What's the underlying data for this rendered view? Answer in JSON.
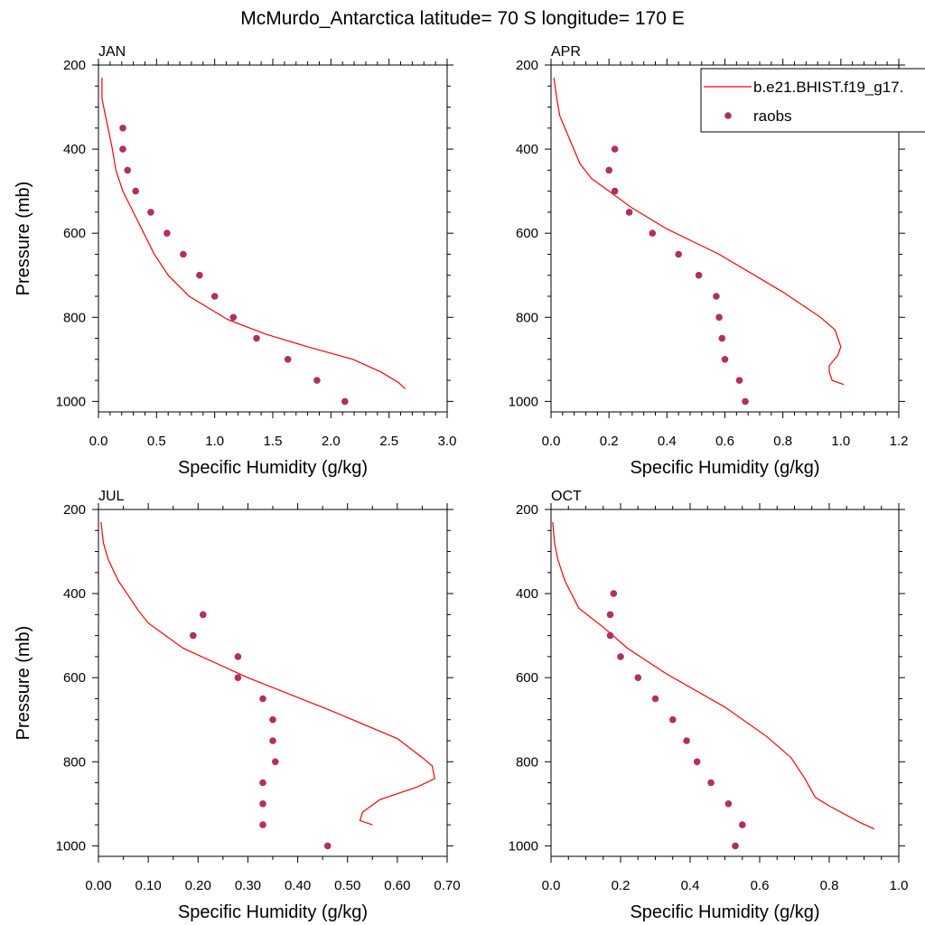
{
  "title": "McMurdo_Antarctica  latitude= 70 S longitude= 170 E",
  "legend": {
    "model_label": "b.e21.BHIST.f19_g17.",
    "obs_label": "raobs"
  },
  "colors": {
    "model_line": "#ff0000",
    "obs_marker": "#b03060",
    "axis": "#000000"
  },
  "chart_data": [
    {
      "type": "scatter",
      "panel": "JAN",
      "xlabel": "Specific Humidity (g/kg)",
      "ylabel": "Pressure (mb)",
      "xlim": [
        0.0,
        3.0
      ],
      "ylim": [
        1025,
        200
      ],
      "y_reversed": true,
      "xticks": [
        "0.0",
        "0.5",
        "1.0",
        "1.5",
        "2.0",
        "2.5",
        "3.0"
      ],
      "yticks": [
        "200",
        "400",
        "600",
        "800",
        "1000"
      ],
      "series": [
        {
          "name": "b.e21.BHIST.f19_g17.",
          "type": "line",
          "points": [
            [
              0.88,
              970
            ],
            [
              0.86,
              955
            ],
            [
              0.81,
              930
            ],
            [
              0.73,
              900
            ],
            [
              0.6,
              870
            ],
            [
              0.48,
              840
            ],
            [
              0.37,
              805
            ],
            [
              0.26,
              750
            ],
            [
              0.2,
              700
            ],
            [
              0.16,
              650
            ],
            [
              0.13,
              600
            ],
            [
              0.1,
              550
            ],
            [
              0.07,
              500
            ],
            [
              0.05,
              450
            ],
            [
              0.04,
              400
            ],
            [
              0.03,
              360
            ],
            [
              0.02,
              320
            ],
            [
              0.01,
              280
            ],
            [
              0.01,
              230
            ]
          ],
          "points_note": "x values scaled: multiply by 3.0"
        },
        {
          "name": "raobs",
          "type": "scatter",
          "points": [
            [
              2.12,
              1000
            ],
            [
              1.88,
              950
            ],
            [
              1.63,
              900
            ],
            [
              1.36,
              850
            ],
            [
              1.16,
              800
            ],
            [
              1.0,
              750
            ],
            [
              0.87,
              700
            ],
            [
              0.73,
              650
            ],
            [
              0.59,
              600
            ],
            [
              0.45,
              550
            ],
            [
              0.32,
              500
            ],
            [
              0.25,
              450
            ],
            [
              0.21,
              400
            ],
            [
              0.21,
              350
            ]
          ]
        }
      ]
    },
    {
      "type": "scatter",
      "panel": "APR",
      "xlabel": "Specific Humidity (g/kg)",
      "ylabel": "",
      "xlim": [
        0.0,
        1.2
      ],
      "ylim": [
        1025,
        200
      ],
      "y_reversed": true,
      "xticks": [
        "0.0",
        "0.2",
        "0.4",
        "0.6",
        "0.8",
        "1.0",
        "1.2"
      ],
      "yticks": [
        "200",
        "400",
        "600",
        "800",
        "1000"
      ],
      "series": [
        {
          "name": "b.e21.BHIST.f19_g17.",
          "type": "line",
          "points": [
            [
              1.01,
              960
            ],
            [
              0.97,
              950
            ],
            [
              0.96,
              930
            ],
            [
              0.96,
              915
            ],
            [
              0.99,
              890
            ],
            [
              1.0,
              870
            ],
            [
              0.98,
              830
            ],
            [
              0.93,
              800
            ],
            [
              0.8,
              740
            ],
            [
              0.58,
              650
            ],
            [
              0.4,
              590
            ],
            [
              0.28,
              540
            ],
            [
              0.2,
              500
            ],
            [
              0.14,
              470
            ],
            [
              0.1,
              435
            ],
            [
              0.06,
              370
            ],
            [
              0.03,
              320
            ],
            [
              0.02,
              280
            ],
            [
              0.01,
              230
            ]
          ]
        },
        {
          "name": "raobs",
          "type": "scatter",
          "points": [
            [
              0.67,
              1000
            ],
            [
              0.65,
              950
            ],
            [
              0.6,
              900
            ],
            [
              0.59,
              850
            ],
            [
              0.58,
              800
            ],
            [
              0.57,
              750
            ],
            [
              0.51,
              700
            ],
            [
              0.44,
              650
            ],
            [
              0.35,
              600
            ],
            [
              0.27,
              550
            ],
            [
              0.22,
              500
            ],
            [
              0.2,
              450
            ],
            [
              0.22,
              400
            ]
          ]
        }
      ]
    },
    {
      "type": "scatter",
      "panel": "JUL",
      "xlabel": "Specific Humidity (g/kg)",
      "ylabel": "Pressure (mb)",
      "xlim": [
        0.0,
        0.7
      ],
      "ylim": [
        1025,
        200
      ],
      "y_reversed": true,
      "xticks": [
        "0.00",
        "0.10",
        "0.20",
        "0.30",
        "0.40",
        "0.50",
        "0.60",
        "0.70"
      ],
      "yticks": [
        "200",
        "400",
        "600",
        "800",
        "1000"
      ],
      "series": [
        {
          "name": "b.e21.BHIST.f19_g17.",
          "type": "line",
          "points": [
            [
              0.55,
              950
            ],
            [
              0.525,
              940
            ],
            [
              0.53,
              920
            ],
            [
              0.565,
              890
            ],
            [
              0.64,
              860
            ],
            [
              0.675,
              840
            ],
            [
              0.67,
              810
            ],
            [
              0.65,
              790
            ],
            [
              0.6,
              745
            ],
            [
              0.47,
              680
            ],
            [
              0.3,
              600
            ],
            [
              0.17,
              530
            ],
            [
              0.1,
              470
            ],
            [
              0.08,
              440
            ],
            [
              0.04,
              370
            ],
            [
              0.02,
              320
            ],
            [
              0.01,
              280
            ],
            [
              0.005,
              230
            ]
          ]
        },
        {
          "name": "raobs",
          "type": "scatter",
          "points": [
            [
              0.46,
              1000
            ],
            [
              0.33,
              950
            ],
            [
              0.33,
              900
            ],
            [
              0.33,
              850
            ],
            [
              0.355,
              800
            ],
            [
              0.35,
              750
            ],
            [
              0.35,
              700
            ],
            [
              0.33,
              650
            ],
            [
              0.28,
              600
            ],
            [
              0.28,
              550
            ],
            [
              0.19,
              500
            ],
            [
              0.21,
              450
            ]
          ]
        }
      ]
    },
    {
      "type": "scatter",
      "panel": "OCT",
      "xlabel": "Specific Humidity (g/kg)",
      "ylabel": "",
      "xlim": [
        0.0,
        1.0
      ],
      "ylim": [
        1025,
        200
      ],
      "y_reversed": true,
      "xticks": [
        "0.0",
        "0.2",
        "0.4",
        "0.6",
        "0.8",
        "1.0"
      ],
      "yticks": [
        "200",
        "400",
        "600",
        "800",
        "1000"
      ],
      "series": [
        {
          "name": "b.e21.BHIST.f19_g17.",
          "type": "line",
          "points": [
            [
              0.93,
              960
            ],
            [
              0.89,
              945
            ],
            [
              0.8,
              905
            ],
            [
              0.76,
              885
            ],
            [
              0.73,
              840
            ],
            [
              0.69,
              790
            ],
            [
              0.62,
              740
            ],
            [
              0.5,
              670
            ],
            [
              0.33,
              590
            ],
            [
              0.22,
              530
            ],
            [
              0.15,
              480
            ],
            [
              0.08,
              435
            ],
            [
              0.04,
              370
            ],
            [
              0.02,
              320
            ],
            [
              0.01,
              280
            ],
            [
              0.005,
              230
            ]
          ]
        },
        {
          "name": "raobs",
          "type": "scatter",
          "points": [
            [
              0.53,
              1000
            ],
            [
              0.55,
              950
            ],
            [
              0.51,
              900
            ],
            [
              0.46,
              850
            ],
            [
              0.42,
              800
            ],
            [
              0.39,
              750
            ],
            [
              0.35,
              700
            ],
            [
              0.3,
              650
            ],
            [
              0.25,
              600
            ],
            [
              0.2,
              550
            ],
            [
              0.17,
              500
            ],
            [
              0.17,
              450
            ],
            [
              0.18,
              400
            ]
          ]
        }
      ]
    }
  ]
}
